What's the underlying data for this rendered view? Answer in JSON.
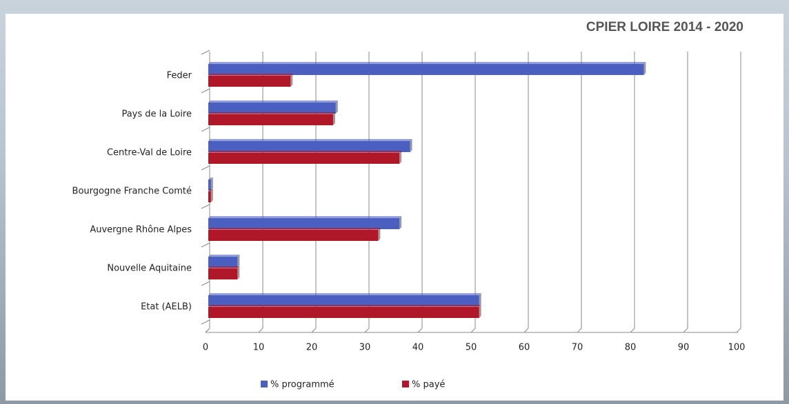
{
  "chart_data": {
    "type": "bar",
    "orientation": "horizontal",
    "title": "CPIER LOIRE 2014 - 2020",
    "categories": [
      "Feder",
      "Pays de la Loire",
      "Centre-Val de Loire",
      "Bourgogne Franche Comté",
      "Auvergne Rhône Alpes",
      "Nouvelle Aquitaine",
      "Etat (AELB)"
    ],
    "series": [
      {
        "name": "% programmé",
        "color": "#4a5fbf",
        "values": [
          82,
          24,
          38,
          0.5,
          36,
          5.5,
          51
        ]
      },
      {
        "name": "% payé",
        "color": "#b0182a",
        "values": [
          15.5,
          23.5,
          36,
          0.5,
          32,
          5.5,
          51
        ]
      }
    ],
    "xlim": [
      0,
      100
    ],
    "xticks": [
      0,
      10,
      20,
      30,
      40,
      50,
      60,
      70,
      80,
      90,
      100
    ],
    "grid": true,
    "legend": "bottom"
  }
}
